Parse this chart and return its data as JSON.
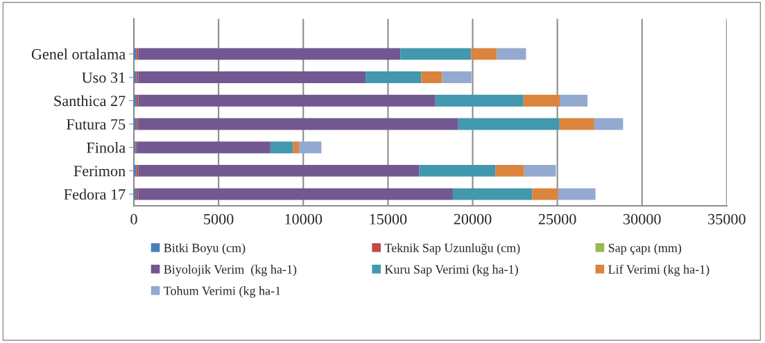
{
  "chart_data": {
    "type": "bar",
    "orientation": "horizontal",
    "stacked": true,
    "categories": [
      "Genel ortalama",
      "Uso 31",
      "Santhica 27",
      "Futura 75",
      "Finola",
      "Ferimon",
      "Fedora 17"
    ],
    "series": [
      {
        "name": "Bitki Boyu (cm)",
        "color": "#4a7ebb",
        "values": [
          150,
          150,
          160,
          170,
          100,
          150,
          160
        ]
      },
      {
        "name": "Teknik Sap Uzunluğu (cm)",
        "color": "#be4b48",
        "values": [
          110,
          110,
          110,
          110,
          70,
          110,
          110
        ]
      },
      {
        "name": "Sap çapı (mm)",
        "color": "#98b954",
        "values": [
          null,
          null,
          null,
          null,
          null,
          null,
          null
        ]
      },
      {
        "name": "Biyolojik Verim  (kg ha-1)",
        "color": "#725890",
        "values": [
          15470,
          13420,
          17530,
          18870,
          7890,
          16590,
          18560
        ]
      },
      {
        "name": "Kuru Sap Verimi (kg ha-1)",
        "color": "#4198af",
        "values": [
          4180,
          3280,
          5200,
          5980,
          1320,
          4490,
          4680
        ]
      },
      {
        "name": "Lif Verimi (kg ha-1)",
        "color": "#db843d",
        "values": [
          1520,
          1230,
          2140,
          2050,
          370,
          1700,
          1540
        ]
      },
      {
        "name": "Tohum Verimi (kg ha-1",
        "color": "#93a9cf",
        "values": [
          1720,
          1740,
          1640,
          1700,
          1320,
          1870,
          2200
        ]
      }
    ],
    "xlim": [
      0,
      35000
    ],
    "xticks": [
      0,
      5000,
      10000,
      15000,
      20000,
      25000,
      30000,
      35000
    ],
    "grid": "x",
    "legend": "bottom"
  }
}
